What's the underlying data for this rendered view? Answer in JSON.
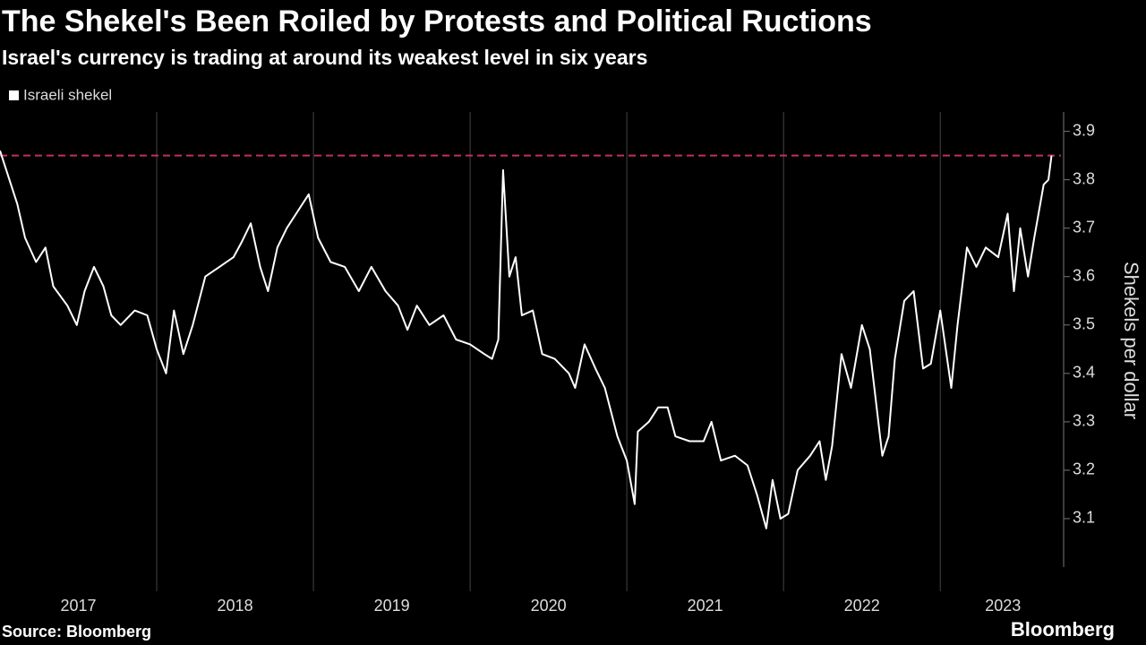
{
  "chart_data": {
    "type": "line",
    "title": "The Shekel's Been Roiled by Protests and Political Ructions",
    "subtitle": "Israel's currency is trading at around its weakest level in six years",
    "y_axis_label": "Shekels per dollar",
    "source": "Source: Bloomberg",
    "brand": "Bloomberg",
    "xlim": [
      2017,
      2023.77
    ],
    "ylim": [
      3.0,
      3.94
    ],
    "xticks": [
      {
        "value": 2017.5,
        "label": "2017"
      },
      {
        "value": 2018.5,
        "label": "2018"
      },
      {
        "value": 2019.5,
        "label": "2019"
      },
      {
        "value": 2020.5,
        "label": "2020"
      },
      {
        "value": 2021.5,
        "label": "2021"
      },
      {
        "value": 2022.5,
        "label": "2022"
      },
      {
        "value": 2023.4,
        "label": "2023"
      }
    ],
    "xgrid": [
      2018,
      2019,
      2020,
      2021,
      2022,
      2023
    ],
    "yticks": [
      3.1,
      3.2,
      3.3,
      3.4,
      3.5,
      3.6,
      3.7,
      3.8,
      3.9
    ],
    "reference_line": {
      "value": 3.85,
      "color": "#c0305a"
    },
    "legend": "top-left",
    "series": [
      {
        "name": "Israeli shekel",
        "color": "#ffffff",
        "x": [
          2017.0,
          2017.11,
          2017.16,
          2017.23,
          2017.29,
          2017.34,
          2017.43,
          2017.49,
          2017.54,
          2017.6,
          2017.66,
          2017.71,
          2017.77,
          2017.86,
          2017.94,
          2018.0,
          2018.06,
          2018.11,
          2018.17,
          2018.23,
          2018.31,
          2018.4,
          2018.49,
          2018.54,
          2018.6,
          2018.66,
          2018.71,
          2018.77,
          2018.83,
          2018.89,
          2018.97,
          2019.03,
          2019.11,
          2019.2,
          2019.29,
          2019.37,
          2019.46,
          2019.54,
          2019.6,
          2019.66,
          2019.74,
          2019.83,
          2019.91,
          2020.0,
          2020.09,
          2020.14,
          2020.18,
          2020.21,
          2020.25,
          2020.29,
          2020.33,
          2020.4,
          2020.46,
          2020.54,
          2020.63,
          2020.67,
          2020.73,
          2020.8,
          2020.86,
          2020.94,
          2021.0,
          2021.05,
          2021.07,
          2021.14,
          2021.2,
          2021.26,
          2021.31,
          2021.4,
          2021.49,
          2021.54,
          2021.6,
          2021.69,
          2021.77,
          2021.83,
          2021.89,
          2021.93,
          2021.98,
          2022.03,
          2022.09,
          2022.17,
          2022.23,
          2022.27,
          2022.31,
          2022.37,
          2022.43,
          2022.5,
          2022.55,
          2022.63,
          2022.67,
          2022.71,
          2022.77,
          2022.83,
          2022.89,
          2022.94,
          2023.0,
          2023.07,
          2023.11,
          2023.17,
          2023.23,
          2023.29,
          2023.37,
          2023.43,
          2023.47,
          2023.51,
          2023.56,
          2023.6,
          2023.66,
          2023.69,
          2023.71
        ],
        "values": [
          3.86,
          3.75,
          3.68,
          3.63,
          3.66,
          3.58,
          3.54,
          3.5,
          3.57,
          3.62,
          3.58,
          3.52,
          3.5,
          3.53,
          3.52,
          3.45,
          3.4,
          3.53,
          3.44,
          3.5,
          3.6,
          3.62,
          3.64,
          3.67,
          3.71,
          3.62,
          3.57,
          3.66,
          3.7,
          3.73,
          3.77,
          3.68,
          3.63,
          3.62,
          3.57,
          3.62,
          3.57,
          3.54,
          3.49,
          3.54,
          3.5,
          3.52,
          3.47,
          3.46,
          3.44,
          3.43,
          3.47,
          3.82,
          3.6,
          3.64,
          3.52,
          3.53,
          3.44,
          3.43,
          3.4,
          3.37,
          3.46,
          3.41,
          3.37,
          3.27,
          3.22,
          3.13,
          3.28,
          3.3,
          3.33,
          3.33,
          3.27,
          3.26,
          3.26,
          3.3,
          3.22,
          3.23,
          3.21,
          3.15,
          3.08,
          3.18,
          3.1,
          3.11,
          3.2,
          3.23,
          3.26,
          3.18,
          3.25,
          3.44,
          3.37,
          3.5,
          3.45,
          3.23,
          3.27,
          3.43,
          3.55,
          3.57,
          3.41,
          3.42,
          3.53,
          3.37,
          3.5,
          3.66,
          3.62,
          3.66,
          3.64,
          3.73,
          3.57,
          3.7,
          3.6,
          3.68,
          3.79,
          3.8,
          3.85
        ]
      }
    ]
  }
}
